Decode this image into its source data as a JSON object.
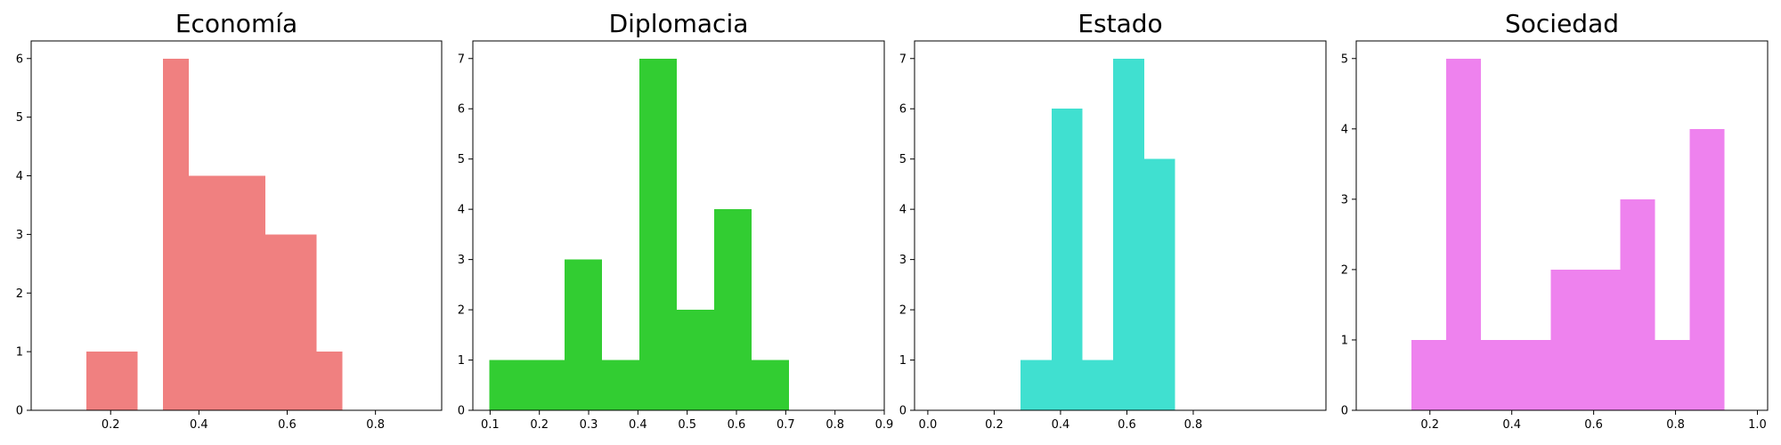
{
  "chart_data": [
    {
      "type": "bar",
      "title": "Economía",
      "color": "#f08080",
      "xlim": [
        0.02,
        0.95
      ],
      "ylim": [
        0,
        6.3
      ],
      "xticks": [
        0.2,
        0.4,
        0.6,
        0.8
      ],
      "xtick_labels": [
        "0.2",
        "0.4",
        "0.6",
        "0.8"
      ],
      "yticks": [
        0,
        1,
        2,
        3,
        4,
        5,
        6
      ],
      "ytick_labels": [
        "0",
        "1",
        "2",
        "3",
        "4",
        "5",
        "6"
      ],
      "bins": [
        {
          "x0": 0.145,
          "x1": 0.203,
          "count": 1
        },
        {
          "x0": 0.203,
          "x1": 0.261,
          "count": 1
        },
        {
          "x0": 0.261,
          "x1": 0.319,
          "count": 0
        },
        {
          "x0": 0.319,
          "x1": 0.377,
          "count": 6
        },
        {
          "x0": 0.377,
          "x1": 0.435,
          "count": 4
        },
        {
          "x0": 0.435,
          "x1": 0.493,
          "count": 4
        },
        {
          "x0": 0.493,
          "x1": 0.551,
          "count": 4
        },
        {
          "x0": 0.551,
          "x1": 0.609,
          "count": 3
        },
        {
          "x0": 0.609,
          "x1": 0.667,
          "count": 3
        },
        {
          "x0": 0.667,
          "x1": 0.725,
          "count": 1
        }
      ]
    },
    {
      "type": "bar",
      "title": "Diplomacia",
      "color": "#32cd32",
      "xlim": [
        0.065,
        0.9
      ],
      "ylim": [
        0,
        7.35
      ],
      "xticks": [
        0.1,
        0.2,
        0.3,
        0.4,
        0.5,
        0.6,
        0.7,
        0.8,
        0.9
      ],
      "xtick_labels": [
        "0.1",
        "0.2",
        "0.3",
        "0.4",
        "0.5",
        "0.6",
        "0.7",
        "0.8",
        "0.9"
      ],
      "yticks": [
        0,
        1,
        2,
        3,
        4,
        5,
        6,
        7
      ],
      "ytick_labels": [
        "0",
        "1",
        "2",
        "3",
        "4",
        "5",
        "6",
        "7"
      ],
      "bins": [
        {
          "x0": 0.098,
          "x1": 0.175,
          "count": 1
        },
        {
          "x0": 0.175,
          "x1": 0.251,
          "count": 1
        },
        {
          "x0": 0.251,
          "x1": 0.327,
          "count": 3
        },
        {
          "x0": 0.327,
          "x1": 0.403,
          "count": 1
        },
        {
          "x0": 0.403,
          "x1": 0.479,
          "count": 7
        },
        {
          "x0": 0.479,
          "x1": 0.555,
          "count": 2
        },
        {
          "x0": 0.555,
          "x1": 0.631,
          "count": 4
        },
        {
          "x0": 0.631,
          "x1": 0.707,
          "count": 1
        }
      ]
    },
    {
      "type": "bar",
      "title": "Estado",
      "color": "#40e0d0",
      "xlim": [
        -0.04,
        1.2
      ],
      "ylim": [
        0,
        7.35
      ],
      "xticks": [
        0.0,
        0.2,
        0.4,
        0.6,
        0.8
      ],
      "xtick_labels": [
        "0.0",
        "0.2",
        "0.4",
        "0.6",
        "0.8"
      ],
      "yticks": [
        0,
        1,
        2,
        3,
        4,
        5,
        6,
        7
      ],
      "ytick_labels": [
        "0",
        "1",
        "2",
        "3",
        "4",
        "5",
        "6",
        "7"
      ],
      "bins": [
        {
          "x0": 0.28,
          "x1": 0.373,
          "count": 1
        },
        {
          "x0": 0.373,
          "x1": 0.466,
          "count": 6
        },
        {
          "x0": 0.466,
          "x1": 0.559,
          "count": 1
        },
        {
          "x0": 0.559,
          "x1": 0.652,
          "count": 7
        },
        {
          "x0": 0.652,
          "x1": 0.745,
          "count": 5
        }
      ]
    },
    {
      "type": "bar",
      "title": "Sociedad",
      "color": "#ee82ee",
      "xlim": [
        0.02,
        1.025
      ],
      "ylim": [
        0,
        5.25
      ],
      "xticks": [
        0.2,
        0.4,
        0.6,
        0.8,
        1.0
      ],
      "xtick_labels": [
        "0.2",
        "0.4",
        "0.6",
        "0.8",
        "1.0"
      ],
      "yticks": [
        0,
        1,
        2,
        3,
        4,
        5
      ],
      "ytick_labels": [
        "0",
        "1",
        "2",
        "3",
        "4",
        "5"
      ],
      "bins": [
        {
          "x0": 0.155,
          "x1": 0.24,
          "count": 1
        },
        {
          "x0": 0.24,
          "x1": 0.325,
          "count": 5
        },
        {
          "x0": 0.325,
          "x1": 0.41,
          "count": 1
        },
        {
          "x0": 0.41,
          "x1": 0.495,
          "count": 1
        },
        {
          "x0": 0.495,
          "x1": 0.58,
          "count": 2
        },
        {
          "x0": 0.58,
          "x1": 0.665,
          "count": 2
        },
        {
          "x0": 0.665,
          "x1": 0.75,
          "count": 3
        },
        {
          "x0": 0.75,
          "x1": 0.835,
          "count": 1
        },
        {
          "x0": 0.835,
          "x1": 0.92,
          "count": 4
        }
      ]
    }
  ]
}
